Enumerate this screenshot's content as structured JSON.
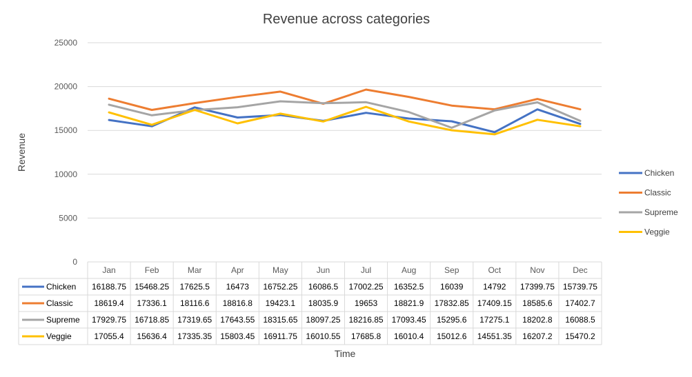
{
  "chart_data": {
    "type": "line",
    "title": "Revenue across categories",
    "xlabel": "Time",
    "ylabel": "Revenue",
    "ylim": [
      0,
      25000
    ],
    "yticks": [
      0,
      5000,
      10000,
      15000,
      20000,
      25000
    ],
    "grid": true,
    "legend_position": "right",
    "data_table": true,
    "categories": [
      "Jan",
      "Feb",
      "Mar",
      "Apr",
      "May",
      "Jun",
      "Jul",
      "Aug",
      "Sep",
      "Oct",
      "Nov",
      "Dec"
    ],
    "series": [
      {
        "name": "Chicken",
        "color": "#4472C4",
        "values": [
          16188.75,
          15468.25,
          17625.5,
          16473,
          16752.25,
          16086.5,
          17002.25,
          16352.5,
          16039,
          14792,
          17399.75,
          15739.75
        ]
      },
      {
        "name": "Classic",
        "color": "#ED7D31",
        "values": [
          18619.4,
          17336.1,
          18116.6,
          18816.8,
          19423.1,
          18035.9,
          19653,
          18821.9,
          17832.85,
          17409.15,
          18585.6,
          17402.7
        ]
      },
      {
        "name": "Supreme",
        "color": "#A5A5A5",
        "values": [
          17929.75,
          16718.85,
          17319.65,
          17643.55,
          18315.65,
          18097.25,
          18216.85,
          17093.45,
          15295.6,
          17275.1,
          18202.8,
          16088.5
        ]
      },
      {
        "name": "Veggie",
        "color": "#FFC000",
        "values": [
          17055.4,
          15636.4,
          17335.35,
          15803.45,
          16911.75,
          16010.55,
          17685.8,
          16010.4,
          15012.6,
          14551.35,
          16207.2,
          15470.2
        ]
      }
    ]
  }
}
